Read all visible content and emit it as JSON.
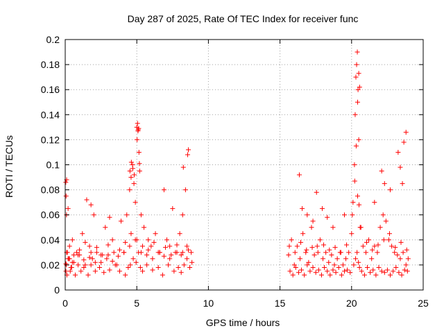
{
  "chart_data": {
    "type": "scatter",
    "title": "Day 287 of 2025, Rate Of TEC Index for receiver func",
    "xlabel": "GPS time / hours",
    "ylabel": "ROTI / TECUs",
    "xlim": [
      0,
      25
    ],
    "ylim": [
      0,
      0.2
    ],
    "xticks": [
      0,
      5,
      10,
      15,
      20,
      25
    ],
    "xtick_labels": [
      "0",
      "5",
      "10",
      "15",
      "20",
      "25"
    ],
    "yticks": [
      0,
      0.02,
      0.04,
      0.06,
      0.08,
      0.1,
      0.12,
      0.14,
      0.16,
      0.18,
      0.2
    ],
    "ytick_labels": [
      "0",
      "0.02",
      "0.04",
      "0.06",
      "0.08",
      "0.1",
      "0.12",
      "0.14",
      "0.16",
      "0.18",
      "0.2"
    ],
    "grid": true,
    "marker": "plus",
    "color": "#ff0000",
    "series": [
      {
        "x": [
          0.05,
          0.1,
          0.15,
          0.2,
          0.3,
          0.4,
          0.5,
          0.6,
          0.8,
          1.0,
          1.2,
          1.4,
          1.5,
          1.7,
          1.9,
          2.0,
          2.2,
          2.5,
          2.8,
          3.0,
          3.3,
          3.6,
          3.9,
          4.1,
          4.3,
          4.5,
          4.6,
          4.7,
          4.8,
          4.9,
          5.0,
          5.05,
          5.1,
          5.15,
          5.2,
          5.3,
          5.5,
          5.8,
          6.0,
          6.3,
          6.6,
          6.9,
          7.1,
          7.3,
          7.5,
          7.8,
          8.0,
          8.2,
          8.4,
          8.6,
          8.8,
          0.05,
          0.08,
          0.12,
          0.25,
          0.35,
          0.45,
          0.7,
          0.9,
          1.1,
          1.3,
          1.6,
          1.8,
          2.1,
          2.4,
          2.7,
          3.1,
          3.5,
          3.8,
          4.2,
          4.4,
          4.55,
          4.75,
          4.95,
          5.12,
          5.25,
          5.4,
          5.7,
          6.1,
          6.5,
          6.8,
          7.2,
          7.6,
          7.9,
          8.1,
          8.3,
          8.5,
          8.7,
          0.1,
          0.3,
          0.6,
          1.0,
          1.4,
          1.8,
          2.2,
          2.6,
          3.0,
          3.4,
          3.8,
          4.2,
          4.6,
          5.0,
          5.4,
          5.8,
          6.2,
          6.6,
          7.0,
          7.4,
          7.8,
          8.2,
          8.6,
          0.2,
          0.5,
          0.9,
          1.3,
          1.7,
          2.1,
          2.5,
          2.9,
          3.3,
          3.7,
          4.1,
          4.5,
          4.9,
          5.3,
          5.7,
          6.1,
          6.5,
          6.9,
          7.3,
          7.7,
          8.1,
          8.5,
          8.85,
          0.04,
          0.06,
          0.09,
          4.52,
          4.62,
          4.72,
          4.82,
          5.02,
          5.08,
          5.13,
          5.18,
          1.8,
          3.1,
          8.25,
          8.55,
          15.6,
          15.8,
          16.0,
          16.2,
          16.4,
          16.6,
          16.8,
          17.0,
          17.2,
          17.4,
          17.6,
          17.8,
          18.0,
          18.2,
          18.4,
          18.6,
          18.8,
          19.0,
          19.2,
          19.4,
          19.6,
          19.8,
          20.0,
          20.1,
          20.2,
          20.25,
          20.3,
          20.35,
          20.4,
          20.45,
          20.5,
          20.6,
          20.8,
          21.0,
          21.2,
          21.4,
          21.6,
          21.8,
          22.0,
          22.2,
          22.4,
          22.6,
          22.8,
          23.0,
          23.2,
          23.4,
          23.6,
          23.8,
          23.95,
          15.7,
          15.9,
          16.1,
          16.3,
          16.5,
          16.7,
          16.9,
          17.1,
          17.3,
          17.5,
          17.7,
          17.9,
          18.1,
          18.3,
          18.5,
          18.7,
          18.9,
          19.1,
          19.3,
          19.5,
          19.7,
          19.9,
          20.15,
          20.28,
          20.38,
          20.48,
          20.55,
          20.7,
          20.9,
          21.1,
          21.3,
          21.5,
          21.7,
          21.9,
          22.1,
          22.3,
          22.5,
          22.7,
          22.9,
          23.1,
          23.3,
          23.5,
          23.7,
          23.9,
          15.65,
          16.05,
          16.45,
          16.85,
          17.25,
          17.65,
          18.05,
          18.45,
          18.85,
          19.25,
          19.65,
          20.05,
          20.42,
          20.52,
          20.65,
          21.05,
          21.45,
          21.85,
          22.25,
          22.65,
          23.05,
          23.45,
          23.85,
          16.35,
          16.55,
          16.9,
          17.3,
          17.55,
          17.95,
          18.3,
          18.7,
          19.5,
          20.22,
          20.32,
          20.42,
          20.5,
          20.56,
          21.6,
          22.1,
          22.3,
          22.7,
          23.25,
          23.4,
          23.55,
          23.65,
          23.8
        ],
        "y": [
          0.021,
          0.088,
          0.03,
          0.065,
          0.025,
          0.018,
          0.04,
          0.022,
          0.03,
          0.028,
          0.045,
          0.02,
          0.072,
          0.035,
          0.025,
          0.06,
          0.03,
          0.022,
          0.05,
          0.028,
          0.04,
          0.02,
          0.055,
          0.03,
          0.06,
          0.08,
          0.09,
          0.1,
          0.085,
          0.07,
          0.13,
          0.133,
          0.128,
          0.11,
          0.095,
          0.06,
          0.05,
          0.04,
          0.035,
          0.045,
          0.03,
          0.08,
          0.04,
          0.035,
          0.065,
          0.03,
          0.045,
          0.06,
          0.08,
          0.112,
          0.03,
          0.015,
          0.02,
          0.012,
          0.025,
          0.015,
          0.018,
          0.012,
          0.02,
          0.015,
          0.018,
          0.012,
          0.02,
          0.015,
          0.018,
          0.014,
          0.016,
          0.02,
          0.015,
          0.012,
          0.018,
          0.02,
          0.025,
          0.022,
          0.03,
          0.018,
          0.015,
          0.02,
          0.016,
          0.018,
          0.012,
          0.02,
          0.015,
          0.018,
          0.014,
          0.02,
          0.025,
          0.018,
          0.03,
          0.035,
          0.028,
          0.032,
          0.038,
          0.03,
          0.034,
          0.028,
          0.036,
          0.03,
          0.032,
          0.038,
          0.045,
          0.04,
          0.035,
          0.032,
          0.038,
          0.03,
          0.034,
          0.028,
          0.036,
          0.03,
          0.032,
          0.025,
          0.022,
          0.028,
          0.024,
          0.026,
          0.022,
          0.028,
          0.025,
          0.023,
          0.027,
          0.03,
          0.035,
          0.04,
          0.03,
          0.028,
          0.025,
          0.03,
          0.027,
          0.025,
          0.03,
          0.028,
          0.035,
          0.022,
          0.086,
          0.075,
          0.06,
          0.095,
          0.102,
          0.097,
          0.092,
          0.12,
          0.127,
          0.129,
          0.101,
          0.068,
          0.058,
          0.098,
          0.108,
          0.028,
          0.04,
          0.02,
          0.035,
          0.025,
          0.045,
          0.03,
          0.022,
          0.05,
          0.028,
          0.035,
          0.04,
          0.025,
          0.03,
          0.022,
          0.028,
          0.02,
          0.025,
          0.03,
          0.02,
          0.025,
          0.03,
          0.045,
          0.07,
          0.1,
          0.14,
          0.17,
          0.18,
          0.19,
          0.16,
          0.12,
          0.05,
          0.035,
          0.03,
          0.04,
          0.025,
          0.035,
          0.03,
          0.05,
          0.06,
          0.055,
          0.04,
          0.035,
          0.03,
          0.028,
          0.025,
          0.03,
          0.02,
          0.025,
          0.015,
          0.012,
          0.018,
          0.014,
          0.016,
          0.012,
          0.02,
          0.015,
          0.018,
          0.014,
          0.016,
          0.012,
          0.018,
          0.015,
          0.012,
          0.016,
          0.014,
          0.018,
          0.012,
          0.015,
          0.016,
          0.014,
          0.02,
          0.025,
          0.03,
          0.022,
          0.018,
          0.015,
          0.012,
          0.018,
          0.014,
          0.016,
          0.012,
          0.018,
          0.015,
          0.014,
          0.016,
          0.012,
          0.015,
          0.018,
          0.014,
          0.012,
          0.016,
          0.015,
          0.035,
          0.03,
          0.038,
          0.032,
          0.034,
          0.03,
          0.036,
          0.032,
          0.034,
          0.03,
          0.036,
          0.06,
          0.075,
          0.068,
          0.05,
          0.038,
          0.032,
          0.036,
          0.04,
          0.045,
          0.034,
          0.038,
          0.032,
          0.092,
          0.065,
          0.06,
          0.055,
          0.078,
          0.065,
          0.058,
          0.05,
          0.06,
          0.087,
          0.115,
          0.15,
          0.173,
          0.162,
          0.07,
          0.095,
          0.085,
          0.08,
          0.11,
          0.098,
          0.085,
          0.118,
          0.126
        ]
      }
    ]
  }
}
